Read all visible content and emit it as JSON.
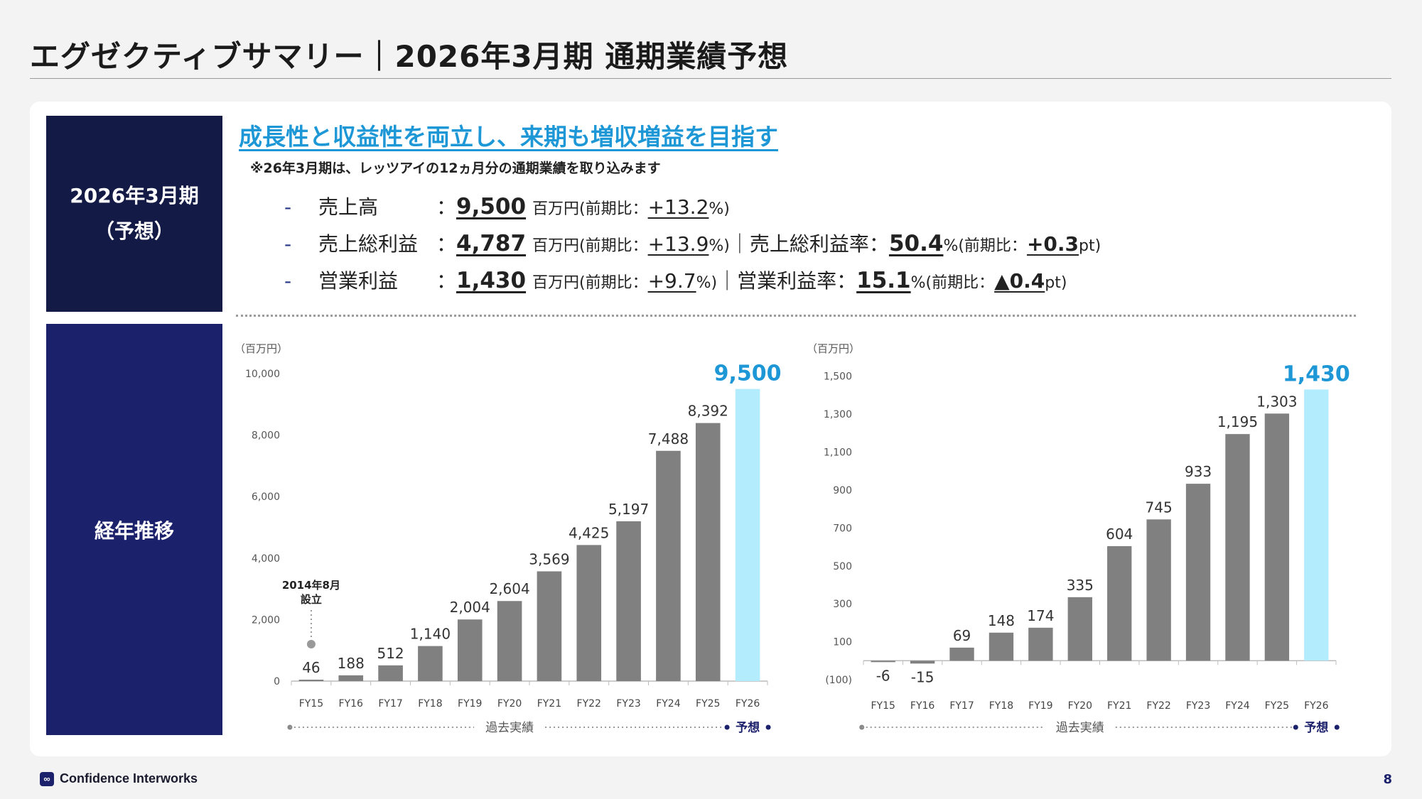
{
  "title": "エグゼクティブサマリー｜2026年3月期 通期業績予想",
  "sidebar": {
    "box1_line1": "2026年3月期",
    "box1_line2": "（予想）",
    "box2": "経年推移"
  },
  "headline": "成長性と収益性を両立し、来期も増収増益を目指す",
  "note": "※26年3月期は、レッツアイの12ヵ月分の通期業績を取り込みます",
  "metrics": [
    {
      "label": "売上高",
      "value": "9,500",
      "unit": "百万円",
      "yoy_prefix": "(前期比：",
      "yoy": "+13.2",
      "yoy_unit": "%)",
      "sep": "",
      "extra_label": "",
      "extra_value": "",
      "extra_unit": "",
      "extra_yoy_prefix": "",
      "extra_yoy": "",
      "extra_yoy_unit": ""
    },
    {
      "label": "売上総利益",
      "value": "4,787",
      "unit": "百万円",
      "yoy_prefix": "(前期比：",
      "yoy": "+13.9",
      "yoy_unit": "%)",
      "sep": "｜",
      "extra_label": "売上総利益率：",
      "extra_value": "50.4",
      "extra_unit": "%",
      "extra_yoy_prefix": "(前期比：",
      "extra_yoy": "+0.3",
      "extra_yoy_unit": "pt)"
    },
    {
      "label": "営業利益",
      "value": "1,430",
      "unit": "百万円",
      "yoy_prefix": "(前期比：",
      "yoy": "+9.7",
      "yoy_unit": "%)",
      "sep": "｜",
      "extra_label": "営業利益率：",
      "extra_value": "15.1",
      "extra_unit": "%",
      "extra_yoy_prefix": "(前期比：",
      "extra_yoy": "▲0.4",
      "extra_yoy_unit": "pt)"
    }
  ],
  "colors": {
    "actual": "#808080",
    "forecast": "#b3ecfd",
    "forecast_label": "#1e97d6",
    "navy": "#1c216b"
  },
  "chart_data": [
    {
      "type": "bar",
      "unit_label": "（百万円）",
      "categories": [
        "FY15",
        "FY16",
        "FY17",
        "FY18",
        "FY19",
        "FY20",
        "FY21",
        "FY22",
        "FY23",
        "FY24",
        "FY25",
        "FY26"
      ],
      "values": [
        46,
        188,
        512,
        1140,
        2004,
        2604,
        3569,
        4425,
        5197,
        7488,
        8392,
        9500
      ],
      "value_labels": [
        "46",
        "188",
        "512",
        "1,140",
        "2,004",
        "2,604",
        "3,569",
        "4,425",
        "5,197",
        "7,488",
        "8,392",
        "9,500"
      ],
      "forecast_index": 11,
      "ylim": [
        0,
        10000
      ],
      "yticks": [
        0,
        2000,
        4000,
        6000,
        8000,
        10000
      ],
      "ytick_labels": [
        "0",
        "2,000",
        "4,000",
        "6,000",
        "8,000",
        "10,000"
      ],
      "annotation": {
        "line1": "2014年8月",
        "line2": "設立",
        "category": "FY15"
      },
      "legend_actual": "過去実績",
      "legend_forecast": "予想"
    },
    {
      "type": "bar",
      "unit_label": "（百万円）",
      "categories": [
        "FY15",
        "FY16",
        "FY17",
        "FY18",
        "FY19",
        "FY20",
        "FY21",
        "FY22",
        "FY23",
        "FY24",
        "FY25",
        "FY26"
      ],
      "values": [
        -6,
        -15,
        69,
        148,
        174,
        335,
        604,
        745,
        933,
        1195,
        1303,
        1430
      ],
      "value_labels": [
        "-6",
        "-15",
        "69",
        "148",
        "174",
        "335",
        "604",
        "745",
        "933",
        "1,195",
        "1,303",
        "1,430"
      ],
      "forecast_index": 11,
      "ylim": [
        -100,
        1600
      ],
      "yticks": [
        -100,
        100,
        300,
        500,
        700,
        900,
        1100,
        1300,
        1500
      ],
      "ytick_labels": [
        "(100)",
        "100",
        "300",
        "500",
        "700",
        "900",
        "1,100",
        "1,300",
        "1,500"
      ],
      "legend_actual": "過去実績",
      "legend_forecast": "予想"
    }
  ],
  "footer": {
    "logo_text": "Confidence Interworks",
    "page": "8"
  }
}
